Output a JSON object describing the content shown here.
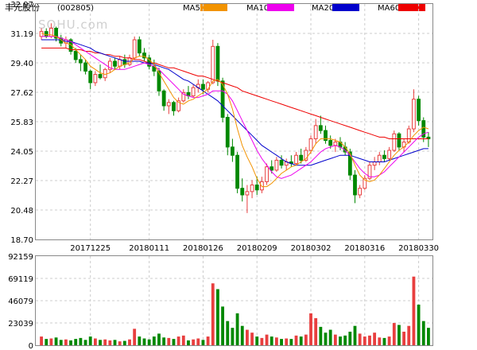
{
  "chart_data": {
    "type": "candlestick",
    "title": "丰元股份",
    "code": "(002805)",
    "watermark": "SOHU.com",
    "price_ylim": [
      18.7,
      32.97
    ],
    "price_ticks": [
      "32.97",
      "31.19",
      "29.40",
      "27.62",
      "25.83",
      "24.05",
      "22.27",
      "20.48",
      "18.70"
    ],
    "volume_ylim": [
      0,
      92159
    ],
    "volume_ticks": [
      "92159",
      "69119",
      "46079",
      "23039",
      "0"
    ],
    "date_labels": [
      {
        "label": "20171225",
        "index": 10
      },
      {
        "label": "20180111",
        "index": 22
      },
      {
        "label": "20180126",
        "index": 33
      },
      {
        "label": "20180209",
        "index": 44
      },
      {
        "label": "20180302",
        "index": 55
      },
      {
        "label": "20180316",
        "index": 66
      },
      {
        "label": "20180330",
        "index": 77
      }
    ],
    "legend": [
      {
        "name": "MA5",
        "color": "#f29300"
      },
      {
        "name": "MA10",
        "color": "#ee00ee"
      },
      {
        "name": "MA20",
        "color": "#0000cc"
      },
      {
        "name": "MA60",
        "color": "#ee0000"
      }
    ],
    "colors": {
      "up": "#e83f3f",
      "down": "#008800",
      "grid": "#cccccc"
    },
    "candles": [
      [
        31.0,
        31.5,
        30.8,
        31.3
      ],
      [
        31.3,
        31.5,
        30.9,
        31.0
      ],
      [
        31.0,
        31.8,
        30.9,
        31.5
      ],
      [
        31.5,
        31.6,
        30.7,
        30.9
      ],
      [
        30.9,
        31.1,
        30.4,
        30.6
      ],
      [
        30.6,
        31.0,
        30.3,
        30.8
      ],
      [
        30.8,
        30.9,
        29.9,
        30.1
      ],
      [
        30.1,
        30.3,
        29.4,
        29.6
      ],
      [
        29.6,
        29.9,
        28.9,
        29.4
      ],
      [
        29.4,
        29.6,
        28.7,
        28.9
      ],
      [
        28.9,
        29.0,
        27.8,
        28.2
      ],
      [
        28.2,
        28.9,
        28.0,
        28.7
      ],
      [
        28.7,
        29.3,
        28.4,
        28.5
      ],
      [
        28.5,
        29.1,
        28.3,
        29.0
      ],
      [
        29.0,
        29.7,
        28.8,
        29.5
      ],
      [
        29.5,
        29.7,
        29.0,
        29.2
      ],
      [
        29.2,
        29.8,
        29.0,
        29.6
      ],
      [
        29.6,
        29.9,
        29.1,
        29.3
      ],
      [
        29.3,
        29.9,
        29.2,
        29.7
      ],
      [
        29.7,
        31.0,
        29.6,
        30.8
      ],
      [
        30.8,
        31.0,
        29.8,
        30.0
      ],
      [
        30.0,
        30.3,
        29.5,
        29.7
      ],
      [
        29.7,
        29.9,
        29.0,
        29.2
      ],
      [
        29.2,
        29.6,
        28.6,
        28.9
      ],
      [
        28.9,
        29.1,
        27.4,
        27.7
      ],
      [
        27.7,
        27.8,
        26.5,
        26.8
      ],
      [
        26.8,
        27.2,
        26.3,
        27.0
      ],
      [
        27.0,
        27.1,
        26.2,
        26.5
      ],
      [
        26.5,
        27.3,
        26.4,
        27.1
      ],
      [
        27.1,
        27.8,
        27.0,
        27.6
      ],
      [
        27.6,
        28.0,
        27.2,
        27.4
      ],
      [
        27.4,
        28.1,
        27.3,
        27.9
      ],
      [
        27.9,
        28.4,
        27.6,
        28.1
      ],
      [
        28.1,
        28.4,
        27.5,
        27.8
      ],
      [
        27.8,
        28.3,
        27.6,
        28.2
      ],
      [
        28.2,
        30.8,
        28.1,
        30.4
      ],
      [
        30.4,
        30.6,
        28.0,
        28.3
      ],
      [
        28.3,
        28.5,
        25.8,
        26.1
      ],
      [
        26.1,
        26.3,
        23.8,
        24.3
      ],
      [
        24.3,
        24.8,
        23.4,
        23.8
      ],
      [
        23.8,
        24.0,
        21.5,
        21.8
      ],
      [
        21.8,
        22.4,
        21.0,
        21.4
      ],
      [
        21.4,
        22.0,
        20.3,
        21.6
      ],
      [
        21.6,
        22.3,
        21.2,
        22.0
      ],
      [
        22.0,
        22.5,
        21.4,
        21.7
      ],
      [
        21.7,
        22.5,
        21.5,
        22.2
      ],
      [
        22.2,
        23.3,
        22.0,
        23.1
      ],
      [
        23.1,
        23.5,
        22.7,
        22.9
      ],
      [
        22.9,
        23.7,
        22.8,
        23.5
      ],
      [
        23.5,
        23.8,
        23.0,
        23.2
      ],
      [
        23.2,
        23.6,
        22.9,
        23.4
      ],
      [
        23.4,
        23.8,
        23.1,
        23.3
      ],
      [
        23.3,
        24.0,
        23.2,
        23.8
      ],
      [
        23.8,
        24.2,
        23.3,
        23.5
      ],
      [
        23.5,
        24.3,
        23.4,
        24.1
      ],
      [
        24.1,
        25.0,
        23.9,
        24.8
      ],
      [
        24.8,
        26.0,
        24.5,
        25.6
      ],
      [
        25.6,
        26.2,
        25.1,
        25.3
      ],
      [
        25.3,
        25.6,
        24.5,
        24.7
      ],
      [
        24.7,
        25.0,
        24.2,
        24.4
      ],
      [
        24.4,
        24.8,
        24.0,
        24.6
      ],
      [
        24.6,
        24.9,
        24.1,
        24.3
      ],
      [
        24.3,
        24.6,
        23.8,
        24.0
      ],
      [
        24.0,
        24.2,
        22.3,
        22.6
      ],
      [
        22.6,
        22.9,
        20.9,
        21.4
      ],
      [
        21.4,
        22.0,
        21.2,
        21.8
      ],
      [
        21.8,
        22.6,
        21.7,
        22.4
      ],
      [
        22.4,
        23.4,
        22.3,
        23.2
      ],
      [
        23.2,
        23.7,
        22.9,
        23.4
      ],
      [
        23.4,
        24.0,
        23.2,
        23.8
      ],
      [
        23.8,
        24.1,
        23.4,
        23.6
      ],
      [
        23.6,
        24.3,
        23.5,
        24.1
      ],
      [
        24.1,
        25.3,
        24.0,
        25.1
      ],
      [
        25.1,
        25.2,
        24.1,
        24.3
      ],
      [
        24.3,
        24.8,
        24.0,
        24.6
      ],
      [
        24.6,
        25.6,
        24.5,
        25.4
      ],
      [
        25.4,
        27.8,
        25.2,
        27.2
      ],
      [
        27.2,
        27.4,
        25.6,
        25.9
      ],
      [
        25.9,
        26.1,
        24.6,
        24.9
      ],
      [
        24.9,
        25.2,
        24.3,
        24.8
      ]
    ],
    "ma5": [
      31.2,
      31.1,
      31.1,
      31.0,
      30.8,
      30.6,
      30.5,
      30.2,
      29.9,
      29.6,
      29.2,
      29.0,
      28.8,
      28.7,
      28.8,
      29.0,
      29.2,
      29.3,
      29.4,
      29.7,
      29.8,
      29.8,
      29.6,
      29.3,
      28.8,
      28.3,
      27.8,
      27.3,
      27.0,
      26.9,
      27.1,
      27.2,
      27.4,
      27.6,
      27.8,
      28.3,
      28.4,
      28.1,
      27.5,
      26.6,
      25.4,
      24.4,
      23.7,
      23.1,
      22.4,
      21.9,
      21.9,
      22.1,
      22.4,
      22.7,
      22.9,
      23.1,
      23.2,
      23.4,
      23.6,
      24.0,
      24.5,
      24.8,
      24.8,
      24.8,
      24.7,
      24.6,
      24.3,
      23.9,
      23.2,
      22.6,
      22.3,
      22.2,
      22.3,
      22.6,
      23.0,
      23.4,
      23.8,
      24.1,
      24.3,
      24.6,
      25.0,
      25.3,
      25.5,
      25.4
    ],
    "ma10": [
      31.0,
      31.0,
      31.0,
      31.0,
      30.9,
      30.8,
      30.7,
      30.5,
      30.3,
      30.1,
      29.9,
      29.7,
      29.5,
      29.3,
      29.1,
      29.0,
      29.0,
      29.0,
      29.1,
      29.2,
      29.3,
      29.4,
      29.3,
      29.2,
      29.0,
      28.7,
      28.4,
      28.1,
      27.8,
      27.5,
      27.4,
      27.3,
      27.3,
      27.4,
      27.5,
      27.7,
      27.7,
      27.7,
      27.5,
      27.1,
      26.5,
      25.9,
      25.3,
      24.7,
      24.1,
      23.6,
      23.2,
      22.8,
      22.5,
      22.4,
      22.5,
      22.6,
      22.8,
      23.0,
      23.2,
      23.4,
      23.7,
      24.0,
      24.2,
      24.3,
      24.4,
      24.3,
      24.1,
      23.8,
      23.4,
      23.0,
      22.7,
      22.5,
      22.5,
      22.6,
      22.8,
      23.1,
      23.4,
      23.7,
      24.0,
      24.3,
      24.6,
      24.9,
      25.1,
      25.2
    ],
    "ma20": [
      30.8,
      30.8,
      30.8,
      30.8,
      30.8,
      30.7,
      30.7,
      30.6,
      30.5,
      30.4,
      30.3,
      30.1,
      30.0,
      29.9,
      29.8,
      29.7,
      29.6,
      29.5,
      29.5,
      29.5,
      29.5,
      29.4,
      29.4,
      29.3,
      29.2,
      29.1,
      29.0,
      28.8,
      28.6,
      28.4,
      28.3,
      28.1,
      27.9,
      27.7,
      27.5,
      27.3,
      27.1,
      26.8,
      26.5,
      26.2,
      25.9,
      25.6,
      25.3,
      25.0,
      24.7,
      24.4,
      24.2,
      24.0,
      23.8,
      23.6,
      23.4,
      23.3,
      23.2,
      23.2,
      23.2,
      23.2,
      23.3,
      23.4,
      23.5,
      23.6,
      23.7,
      23.8,
      23.8,
      23.8,
      23.7,
      23.6,
      23.5,
      23.4,
      23.4,
      23.4,
      23.4,
      23.5,
      23.6,
      23.7,
      23.8,
      23.9,
      24.0,
      24.1,
      24.2,
      24.2
    ],
    "ma60": [
      30.3,
      30.3,
      30.3,
      30.3,
      30.3,
      30.3,
      30.2,
      30.2,
      30.2,
      30.1,
      30.1,
      30.0,
      30.0,
      29.9,
      29.9,
      29.8,
      29.8,
      29.7,
      29.7,
      29.6,
      29.6,
      29.5,
      29.4,
      29.4,
      29.3,
      29.2,
      29.1,
      29.1,
      29.0,
      28.9,
      28.8,
      28.7,
      28.6,
      28.6,
      28.5,
      28.4,
      28.3,
      28.2,
      28.1,
      28.0,
      27.9,
      27.7,
      27.6,
      27.5,
      27.4,
      27.3,
      27.2,
      27.1,
      27.0,
      26.9,
      26.8,
      26.7,
      26.6,
      26.5,
      26.4,
      26.3,
      26.2,
      26.1,
      26.0,
      25.9,
      25.8,
      25.7,
      25.6,
      25.5,
      25.4,
      25.3,
      25.2,
      25.1,
      25.0,
      24.9,
      24.9,
      24.8,
      24.8,
      24.8,
      24.8,
      24.8,
      24.8,
      24.8,
      24.8,
      24.8
    ],
    "volume": [
      9000,
      6500,
      7000,
      8000,
      5500,
      6000,
      5000,
      6500,
      7500,
      5500,
      9000,
      7000,
      5500,
      6000,
      5000,
      5500,
      4000,
      4500,
      6000,
      17000,
      9000,
      7000,
      6000,
      9000,
      12000,
      8000,
      7500,
      6500,
      9000,
      10000,
      5000,
      6000,
      7000,
      5500,
      9000,
      64000,
      58000,
      40000,
      25000,
      18000,
      33000,
      20000,
      16000,
      13000,
      9000,
      7500,
      11000,
      9000,
      8000,
      6500,
      7000,
      6500,
      10000,
      9000,
      11000,
      33000,
      28000,
      19000,
      13000,
      16000,
      11000,
      9000,
      10000,
      14000,
      20000,
      12000,
      9000,
      10000,
      13000,
      8000,
      7500,
      9000,
      23000,
      21000,
      14000,
      20000,
      71000,
      42000,
      25000,
      18000
    ]
  }
}
